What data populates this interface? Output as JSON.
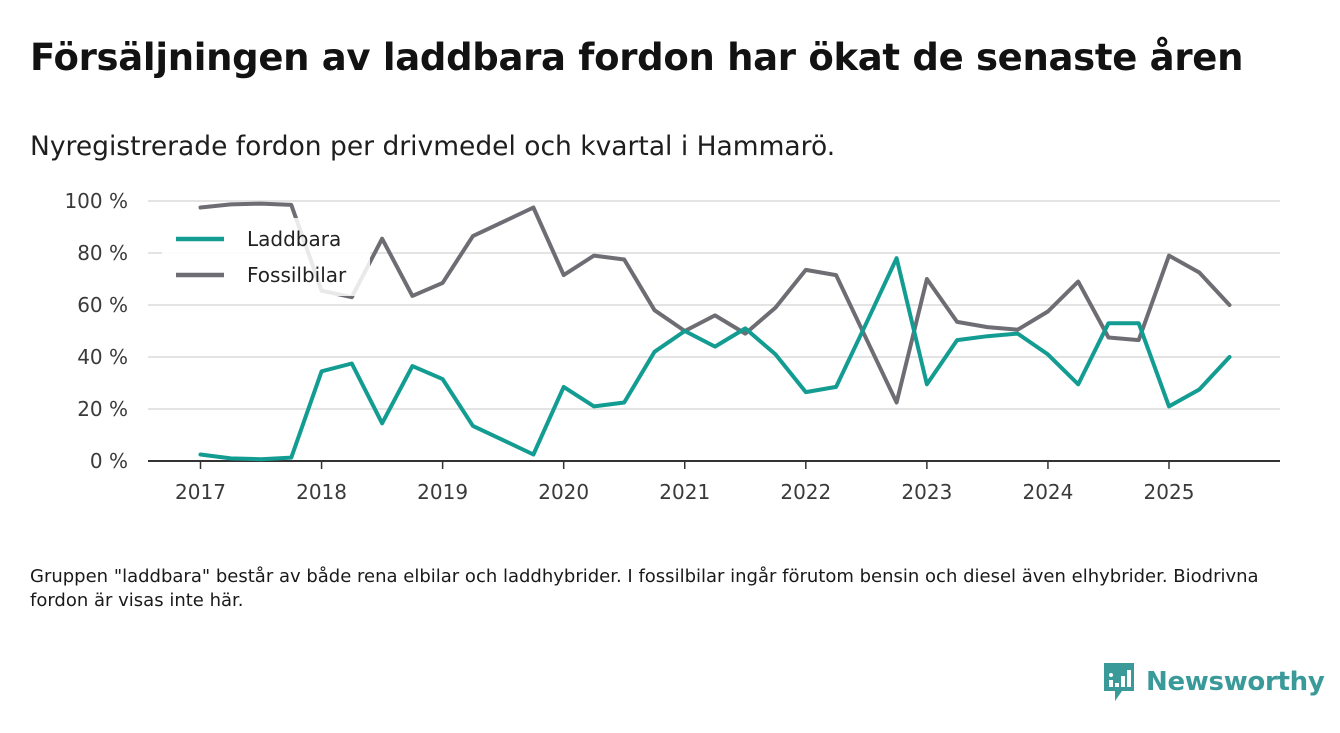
{
  "title": "Försäljningen av laddbara fordon har ökat de senaste åren",
  "subtitle": "Nyregistrerade fordon per drivmedel och kvartal i Hammarö.",
  "note": "Gruppen \"laddbara\" består av både rena elbilar och laddhybrider. I fossilbilar ingår förutom bensin och diesel även elhybrider. Biodrivna fordon är visas inte här.",
  "brand": {
    "name": "Newsworthy"
  },
  "colors": {
    "laddbara": "#139c92",
    "fossil": "#6e6d74",
    "grid": "#dcdcdc",
    "axis": "#333333",
    "brand": "#3a9a9a"
  },
  "chart_data": {
    "type": "line",
    "title": "Försäljningen av laddbara fordon har ökat de senaste åren",
    "subtitle": "Nyregistrerade fordon per drivmedel och kvartal i Hammarö.",
    "xlabel": "",
    "ylabel": "",
    "ylim": [
      0,
      100
    ],
    "yticks": [
      0,
      20,
      40,
      60,
      80,
      100
    ],
    "ytick_labels": [
      "0 %",
      "20 %",
      "40 %",
      "60 %",
      "80 %",
      "100 %"
    ],
    "xlim": [
      2017,
      2025.75
    ],
    "xticks": [
      2017,
      2018,
      2019,
      2020,
      2021,
      2022,
      2023,
      2024,
      2025
    ],
    "xtick_labels": [
      "2017",
      "2018",
      "2019",
      "2020",
      "2021",
      "2022",
      "2023",
      "2024",
      "2025"
    ],
    "grid": true,
    "legend_position": "top-left",
    "x": [
      2017,
      2017.25,
      2017.5,
      2017.75,
      2018,
      2018.25,
      2018.5,
      2018.75,
      2019,
      2019.25,
      2019.5,
      2019.75,
      2020,
      2020.25,
      2020.5,
      2020.75,
      2021,
      2021.25,
      2021.5,
      2021.75,
      2022,
      2022.25,
      2022.5,
      2022.75,
      2023,
      2023.25,
      2023.5,
      2023.75,
      2024,
      2024.25,
      2024.5,
      2024.75,
      2025,
      2025.25,
      2025.5
    ],
    "series": [
      {
        "name": "Laddbara",
        "color": "#139c92",
        "values": [
          2.5,
          1,
          0.7,
          1.3,
          34.5,
          37.5,
          14.5,
          36.5,
          31.5,
          13.5,
          8,
          2.5,
          28.5,
          21,
          22.5,
          42,
          50,
          44,
          51,
          41,
          26.5,
          28.5,
          53,
          78,
          29.5,
          46.5,
          48,
          49,
          41,
          29.5,
          53,
          53,
          21,
          27.5,
          40
        ]
      },
      {
        "name": "Fossilbilar",
        "color": "#6e6d74",
        "values": [
          97.5,
          98.7,
          99,
          98.5,
          65.5,
          63,
          85.5,
          63.5,
          68.5,
          86.5,
          92,
          97.5,
          71.5,
          79,
          77.5,
          58,
          50,
          56,
          49,
          59,
          73.5,
          71.5,
          47,
          22.5,
          70,
          53.5,
          51.5,
          50.5,
          57.5,
          69,
          47.5,
          46.5,
          79,
          72.5,
          60
        ]
      }
    ]
  }
}
